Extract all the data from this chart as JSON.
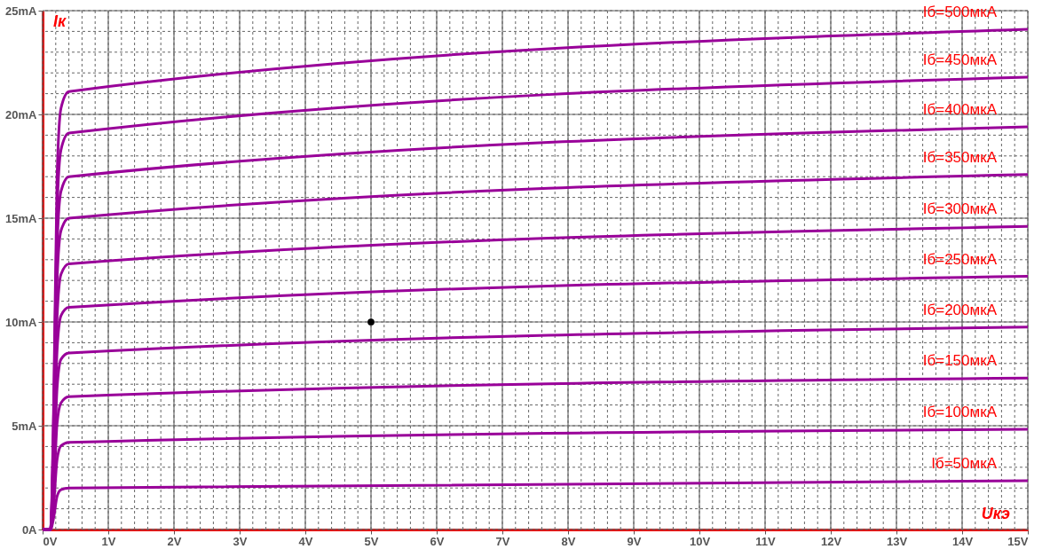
{
  "chart_data": {
    "type": "line",
    "xlabel": "Uкэ",
    "ylabel": "Iк",
    "x": [
      0,
      0.12,
      0.17,
      0.22,
      0.28,
      0.4,
      15
    ],
    "series": [
      {
        "name": "Iб=50мкА",
        "color": "#990099",
        "values": [
          0,
          0,
          0.6,
          1.6,
          1.92,
          2.0,
          2.35
        ]
      },
      {
        "name": "Iб=100мкА",
        "color": "#990099",
        "values": [
          0,
          0,
          1.26,
          3.36,
          4.03,
          4.2,
          4.83
        ]
      },
      {
        "name": "Iб=150мкА",
        "color": "#990099",
        "values": [
          0,
          0,
          1.9,
          5.1,
          6.1,
          6.4,
          7.3
        ]
      },
      {
        "name": "Iб=200мкА",
        "color": "#990099",
        "values": [
          0,
          0,
          2.6,
          6.8,
          8.2,
          8.5,
          9.75
        ]
      },
      {
        "name": "Iб=250мкА",
        "color": "#990099",
        "values": [
          0,
          0,
          3.2,
          8.6,
          10.3,
          10.7,
          12.2
        ]
      },
      {
        "name": "Iб=300мкА",
        "color": "#990099",
        "values": [
          0,
          0,
          3.8,
          10.2,
          12.3,
          12.8,
          14.6
        ]
      },
      {
        "name": "Iб=350мкА",
        "color": "#990099",
        "values": [
          0,
          0,
          4.5,
          12,
          14.4,
          15,
          17.1
        ]
      },
      {
        "name": "Iб=400мкА",
        "color": "#990099",
        "values": [
          0,
          0,
          5.1,
          13.6,
          16.3,
          17,
          19.4
        ]
      },
      {
        "name": "Iб=450мкА",
        "color": "#990099",
        "values": [
          0,
          0,
          5.7,
          15.3,
          18.3,
          19.1,
          21.8
        ]
      },
      {
        "name": "Iб=500мкА",
        "color": "#990099",
        "values": [
          0,
          0,
          6.3,
          16.9,
          20.3,
          21.1,
          24.1
        ]
      },
      {
        "type": "scatter",
        "color": "#000000",
        "x": [
          5
        ],
        "values": [
          10
        ]
      }
    ],
    "xlim": [
      0,
      15
    ],
    "ylim": [
      0,
      25
    ],
    "xticks": [
      {
        "value": 0,
        "label": "0V"
      },
      {
        "value": 1,
        "label": "1V"
      },
      {
        "value": 2,
        "label": "2V"
      },
      {
        "value": 3,
        "label": "3V"
      },
      {
        "value": 4,
        "label": "4V"
      },
      {
        "value": 5,
        "label": "5V"
      },
      {
        "value": 6,
        "label": "6V"
      },
      {
        "value": 7,
        "label": "7V"
      },
      {
        "value": 8,
        "label": "8V"
      },
      {
        "value": 9,
        "label": "9V"
      },
      {
        "value": 10,
        "label": "10V"
      },
      {
        "value": 11,
        "label": "11V"
      },
      {
        "value": 12,
        "label": "12V"
      },
      {
        "value": 13,
        "label": "13V"
      },
      {
        "value": 14,
        "label": "14V"
      },
      {
        "value": 15,
        "label": "15V"
      }
    ],
    "yticks": [
      {
        "value": 0,
        "label": "0A"
      },
      {
        "value": 5,
        "label": "5mA"
      },
      {
        "value": 10,
        "label": "10mA"
      },
      {
        "value": 15,
        "label": "15mA"
      },
      {
        "value": 20,
        "label": "20mA"
      },
      {
        "value": 25,
        "label": "25mA"
      }
    ],
    "grid": true
  }
}
